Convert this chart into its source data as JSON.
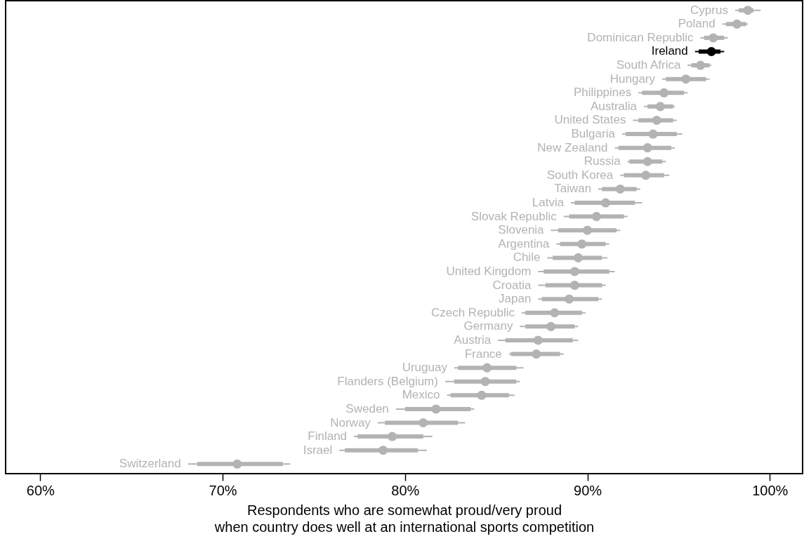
{
  "chart_data": {
    "type": "box",
    "orientation": "horizontal",
    "xlabel": "Respondents who are somewhat proud/very proud\nwhen country does well at an international sports competition",
    "categories": [
      "Cyprus",
      "Poland",
      "Dominican Republic",
      "Ireland",
      "South Africa",
      "Hungary",
      "Philippines",
      "Australia",
      "United States",
      "Bulgaria",
      "New Zealand",
      "Russia",
      "South Korea",
      "Taiwan",
      "Latvia",
      "Slovak Republic",
      "Slovenia",
      "Argentina",
      "Chile",
      "United Kingdom",
      "Croatia",
      "Japan",
      "Czech Republic",
      "Germany",
      "Austria",
      "France",
      "Uruguay",
      "Flanders (Belgium)",
      "Mexico",
      "Sweden",
      "Norway",
      "Finland",
      "Israel",
      "Switzerland"
    ],
    "boxes": [
      {
        "low": 98.1,
        "q1": 98.3,
        "median": 98.8,
        "q3": 99.1,
        "high": 99.5
      },
      {
        "low": 97.4,
        "q1": 97.6,
        "median": 98.2,
        "q3": 98.7,
        "high": 98.8
      },
      {
        "low": 96.2,
        "q1": 96.4,
        "median": 96.9,
        "q3": 97.5,
        "high": 97.7
      },
      {
        "low": 95.9,
        "q1": 96.1,
        "median": 96.8,
        "q3": 97.3,
        "high": 97.5
      },
      {
        "low": 95.5,
        "q1": 95.7,
        "median": 96.2,
        "q3": 96.7,
        "high": 96.8
      },
      {
        "low": 94.1,
        "q1": 94.3,
        "median": 95.4,
        "q3": 96.5,
        "high": 96.7
      },
      {
        "low": 92.8,
        "q1": 93.0,
        "median": 94.2,
        "q3": 95.3,
        "high": 95.5
      },
      {
        "low": 93.1,
        "q1": 93.3,
        "median": 94.0,
        "q3": 94.7,
        "high": 94.8
      },
      {
        "low": 92.5,
        "q1": 92.8,
        "median": 93.8,
        "q3": 94.7,
        "high": 94.9
      },
      {
        "low": 91.9,
        "q1": 92.1,
        "median": 93.6,
        "q3": 94.9,
        "high": 95.2
      },
      {
        "low": 91.5,
        "q1": 91.7,
        "median": 93.3,
        "q3": 94.6,
        "high": 94.8
      },
      {
        "low": 92.2,
        "q1": 92.3,
        "median": 93.3,
        "q3": 94.1,
        "high": 94.3
      },
      {
        "low": 91.8,
        "q1": 92.0,
        "median": 93.2,
        "q3": 94.2,
        "high": 94.5
      },
      {
        "low": 90.6,
        "q1": 90.8,
        "median": 91.8,
        "q3": 92.7,
        "high": 92.9
      },
      {
        "low": 89.1,
        "q1": 89.3,
        "median": 91.0,
        "q3": 92.6,
        "high": 93.0
      },
      {
        "low": 88.7,
        "q1": 89.0,
        "median": 90.5,
        "q3": 92.0,
        "high": 92.2
      },
      {
        "low": 88.0,
        "q1": 88.4,
        "median": 90.0,
        "q3": 91.6,
        "high": 91.8
      },
      {
        "low": 88.3,
        "q1": 88.5,
        "median": 89.7,
        "q3": 91.0,
        "high": 91.2
      },
      {
        "low": 87.8,
        "q1": 88.1,
        "median": 89.5,
        "q3": 90.8,
        "high": 91.1
      },
      {
        "low": 87.3,
        "q1": 87.6,
        "median": 89.3,
        "q3": 91.2,
        "high": 91.5
      },
      {
        "low": 87.3,
        "q1": 87.7,
        "median": 89.3,
        "q3": 90.8,
        "high": 91.0
      },
      {
        "low": 87.3,
        "q1": 87.5,
        "median": 89.0,
        "q3": 90.6,
        "high": 90.8
      },
      {
        "low": 86.4,
        "q1": 86.6,
        "median": 88.2,
        "q3": 89.7,
        "high": 89.9
      },
      {
        "low": 86.3,
        "q1": 86.6,
        "median": 88.0,
        "q3": 89.3,
        "high": 89.5
      },
      {
        "low": 85.1,
        "q1": 85.5,
        "median": 87.3,
        "q3": 89.2,
        "high": 89.5
      },
      {
        "low": 85.7,
        "q1": 85.8,
        "median": 87.2,
        "q3": 88.5,
        "high": 88.7
      },
      {
        "low": 82.7,
        "q1": 82.9,
        "median": 84.5,
        "q3": 86.1,
        "high": 86.5
      },
      {
        "low": 82.2,
        "q1": 82.7,
        "median": 84.4,
        "q3": 86.1,
        "high": 86.3
      },
      {
        "low": 82.3,
        "q1": 82.5,
        "median": 84.2,
        "q3": 85.7,
        "high": 86.0
      },
      {
        "low": 79.5,
        "q1": 80.0,
        "median": 81.7,
        "q3": 83.6,
        "high": 83.8
      },
      {
        "low": 78.5,
        "q1": 78.9,
        "median": 81.0,
        "q3": 82.9,
        "high": 83.3
      },
      {
        "low": 77.2,
        "q1": 77.4,
        "median": 79.3,
        "q3": 81.0,
        "high": 81.5
      },
      {
        "low": 76.4,
        "q1": 76.7,
        "median": 78.8,
        "q3": 80.7,
        "high": 81.2
      },
      {
        "low": 68.1,
        "q1": 68.6,
        "median": 70.8,
        "q3": 73.3,
        "high": 73.7
      }
    ],
    "colors": [
      "#b3b3b3",
      "#b3b3b3",
      "#b3b3b3",
      "#000000",
      "#b3b3b3",
      "#b3b3b3",
      "#b3b3b3",
      "#b3b3b3",
      "#b3b3b3",
      "#b3b3b3",
      "#b3b3b3",
      "#b3b3b3",
      "#b3b3b3",
      "#b3b3b3",
      "#b3b3b3",
      "#b3b3b3",
      "#b3b3b3",
      "#b3b3b3",
      "#b3b3b3",
      "#b3b3b3",
      "#b3b3b3",
      "#b3b3b3",
      "#b3b3b3",
      "#b3b3b3",
      "#b3b3b3",
      "#b3b3b3",
      "#b3b3b3",
      "#b3b3b3",
      "#b3b3b3",
      "#b3b3b3",
      "#b3b3b3",
      "#b3b3b3",
      "#b3b3b3",
      "#b3b3b3"
    ],
    "xlim": [
      58.1,
      101.8
    ],
    "xticks": [
      {
        "value": 60,
        "label": "60%"
      },
      {
        "value": 70,
        "label": "70%"
      },
      {
        "value": 80,
        "label": "80%"
      },
      {
        "value": 90,
        "label": "90%"
      },
      {
        "value": 100,
        "label": "100%"
      }
    ],
    "grid": false
  }
}
